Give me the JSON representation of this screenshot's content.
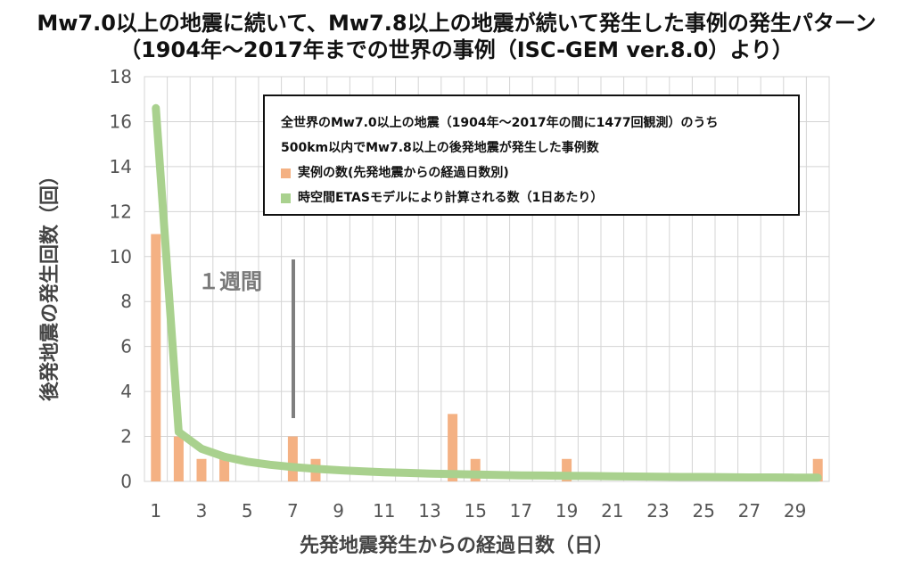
{
  "title_line1": "Mw7.0以上の地震に続いて、Mw7.8以上の地震が続いて発生した事例の発生パターン",
  "title_line2": "（1904年～2017年までの世界の事例（ISC-GEM ver.8.0）より）",
  "annotation": "１週間",
  "legend": {
    "line1": "全世界のMw7.0以上の地震（1904年～2017年の間に1477回観測）のうち",
    "line2": "500km以内でMw7.8以上の後発地震が発生した事例数",
    "bar_label": "実例の数(先発地震からの経過日数別)",
    "line_label": "時空間ETASモデルにより計算される数（1日あたり）"
  },
  "colors": {
    "bars": "#f4b183",
    "curve": "#a9d18e",
    "grid": "#d4d4d4"
  },
  "chart_data": {
    "type": "bar",
    "xlabel": "先発地震発生からの経過日数（日）",
    "ylabel": "後発地震の発生回数（回）",
    "ylim": [
      0,
      18
    ],
    "yticks": [
      0,
      2,
      4,
      6,
      8,
      10,
      12,
      14,
      16,
      18
    ],
    "xlim": [
      1,
      30
    ],
    "xticks": [
      1,
      3,
      5,
      7,
      9,
      11,
      13,
      15,
      17,
      19,
      21,
      23,
      25,
      27,
      29
    ],
    "grid": true,
    "series": [
      {
        "name": "実例の数(先発地震からの経過日数別)",
        "type": "bar",
        "x": [
          1,
          2,
          3,
          4,
          7,
          8,
          14,
          15,
          19,
          30
        ],
        "values": [
          11,
          2,
          1,
          1,
          2,
          1,
          3,
          1,
          1,
          1
        ]
      },
      {
        "name": "時空間ETASモデルにより計算される数（1日あたり）",
        "type": "line",
        "x": [
          1,
          2,
          3,
          4,
          5,
          6,
          7,
          8,
          9,
          10,
          11,
          12,
          13,
          14,
          15,
          16,
          17,
          18,
          19,
          20,
          21,
          22,
          23,
          24,
          25,
          26,
          27,
          28,
          29,
          30
        ],
        "values": [
          16.6,
          2.2,
          1.45,
          1.1,
          0.88,
          0.74,
          0.64,
          0.56,
          0.5,
          0.45,
          0.41,
          0.38,
          0.35,
          0.33,
          0.31,
          0.29,
          0.27,
          0.26,
          0.25,
          0.24,
          0.23,
          0.22,
          0.21,
          0.2,
          0.2,
          0.19,
          0.18,
          0.18,
          0.17,
          0.17
        ]
      }
    ]
  }
}
